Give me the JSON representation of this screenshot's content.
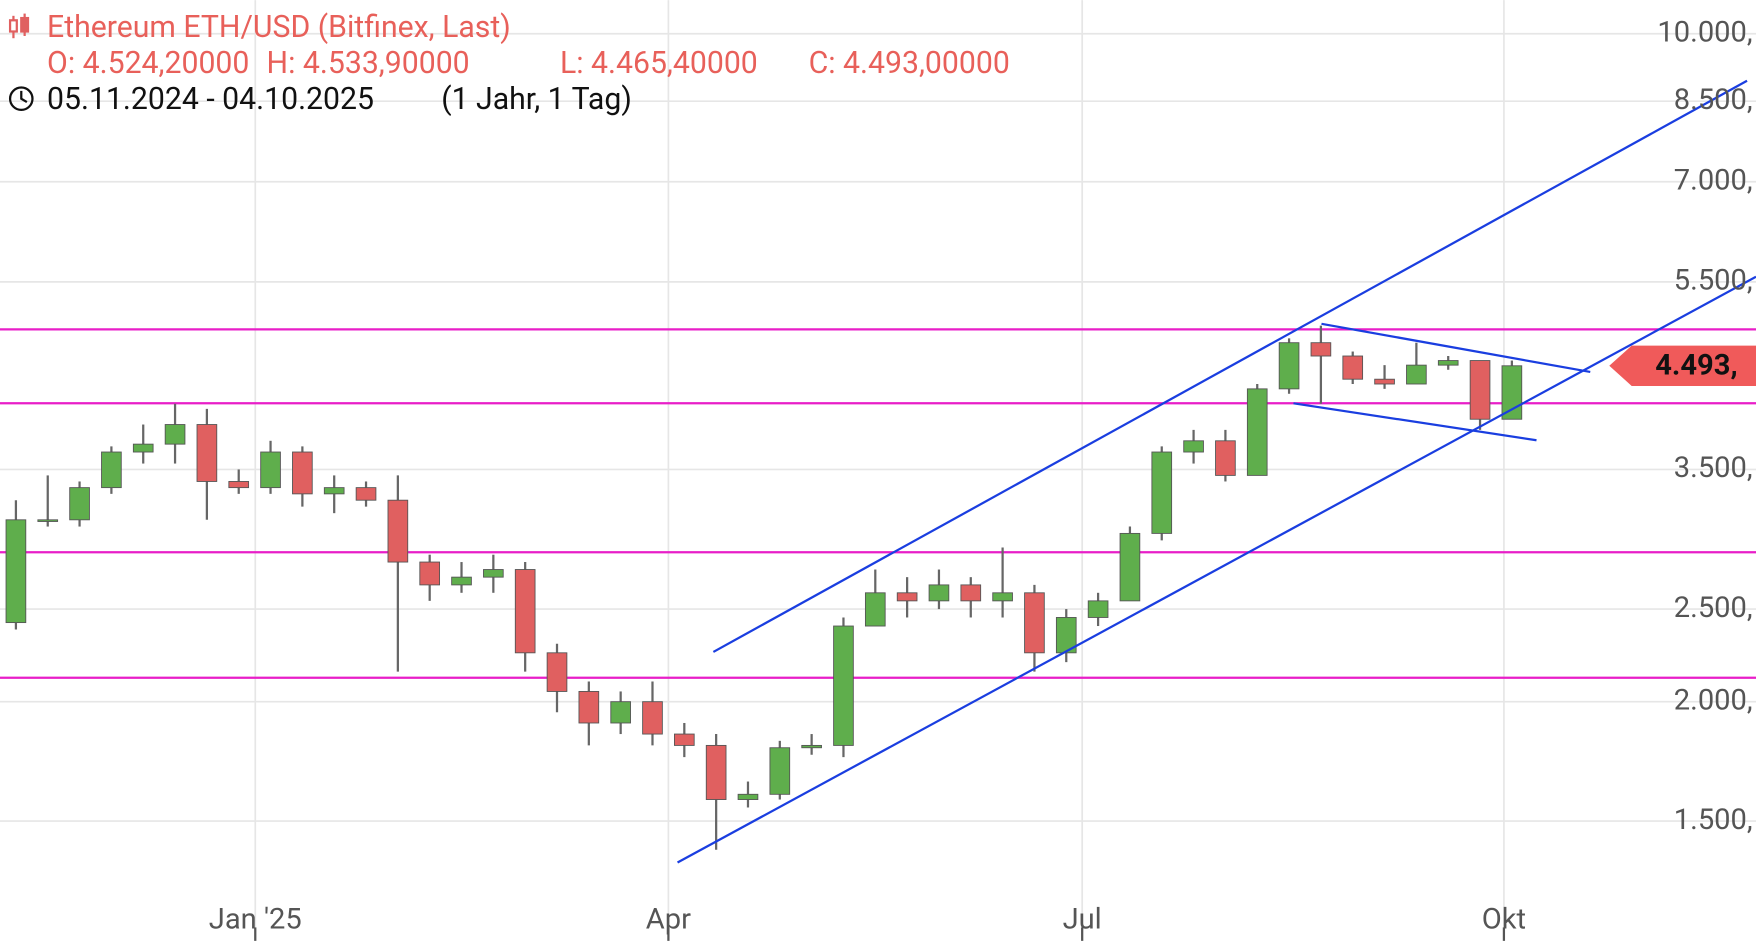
{
  "header": {
    "title": "Ethereum ETH/USD (Bitfinex, Last)",
    "ohlc": [
      "O: 4.524,20000",
      "H: 4.533,90000",
      "L: 4.465,40000",
      "C: 4.493,00000"
    ],
    "range": "05.11.2024 - 04.10.2025",
    "period": "(1 Jahr, 1 Tag)"
  },
  "chart_data": {
    "type": "candlestick",
    "log_scale": true,
    "grid": true,
    "up_color": "#5fae4c",
    "down_color": "#e06060",
    "wick_color": "#666666",
    "level_color": "#e81ec8",
    "xlim": [
      -0.5,
      54.67
    ],
    "ylim": [
      1124,
      10843
    ],
    "xticks": [
      {
        "value": 7.52,
        "label": "Jan '25"
      },
      {
        "value": 20.5,
        "label": "Apr"
      },
      {
        "value": 33.5,
        "label": "Jul"
      },
      {
        "value": 46.75,
        "label": "Okt"
      }
    ],
    "yticks": [
      {
        "value": 1500,
        "label": "1.500,"
      },
      {
        "value": 2000,
        "label": "2.000,"
      },
      {
        "value": 2500,
        "label": "2.500,"
      },
      {
        "value": 3500,
        "label": "3.500,"
      },
      {
        "value": 5500,
        "label": "5.500,"
      },
      {
        "value": 7000,
        "label": "7.000,"
      },
      {
        "value": 8500,
        "label": "8.500,"
      },
      {
        "value": 10000,
        "label": "10.000,"
      }
    ],
    "levels": [
      4905,
      4105,
      2867,
      2119
    ],
    "last_price": {
      "value": 4493,
      "label": "4.493,"
    },
    "open": [
      2420,
      3100,
      3100,
      3350,
      3650,
      3720,
      3900,
      3400,
      3350,
      3650,
      3300,
      3350,
      3250,
      2800,
      2650,
      2700,
      2750,
      2250,
      2050,
      1900,
      2000,
      1850,
      1800,
      1580,
      1600,
      1790,
      1800,
      2400,
      2600,
      2550,
      2650,
      2550,
      2600,
      2250,
      2450,
      2550,
      3000,
      3650,
      3750,
      3450,
      4250,
      4750,
      4600,
      4350,
      4300,
      4500,
      4550,
      3950
    ],
    "high": [
      3250,
      3450,
      3400,
      3700,
      3900,
      4100,
      4050,
      3500,
      3750,
      3700,
      3450,
      3400,
      3450,
      2850,
      2800,
      2850,
      2800,
      2300,
      2100,
      2050,
      2100,
      1900,
      1850,
      1650,
      1820,
      1850,
      2450,
      2750,
      2700,
      2750,
      2700,
      2900,
      2650,
      2500,
      2600,
      3050,
      3700,
      3850,
      3850,
      4300,
      4800,
      4950,
      4650,
      4500,
      4750,
      4600,
      4550,
      4550
    ],
    "low": [
      2380,
      3050,
      3050,
      3300,
      3550,
      3550,
      3100,
      3300,
      3300,
      3200,
      3150,
      3200,
      2150,
      2550,
      2600,
      2600,
      2150,
      1950,
      1800,
      1850,
      1800,
      1750,
      1400,
      1550,
      1580,
      1760,
      1750,
      2400,
      2450,
      2500,
      2450,
      2450,
      2150,
      2200,
      2400,
      2550,
      2950,
      3550,
      3400,
      3450,
      4200,
      4100,
      4300,
      4250,
      4300,
      4450,
      3850,
      3950
    ],
    "close": [
      3100,
      3100,
      3350,
      3650,
      3720,
      3900,
      3400,
      3350,
      3650,
      3300,
      3350,
      3250,
      2800,
      2650,
      2700,
      2750,
      2250,
      2050,
      1900,
      2000,
      1850,
      1800,
      1580,
      1600,
      1790,
      1800,
      2400,
      2600,
      2550,
      2650,
      2550,
      2600,
      2250,
      2450,
      2550,
      3000,
      3650,
      3750,
      3450,
      4250,
      4750,
      4600,
      4350,
      4300,
      4500,
      4550,
      3950,
      4493
    ]
  }
}
